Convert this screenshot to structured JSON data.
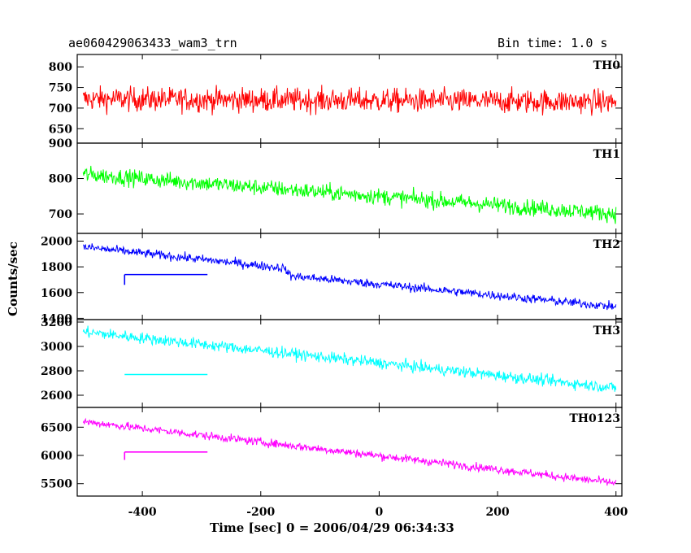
{
  "header": {
    "left_title": "ae060429063433_wam3_trn",
    "right_title": "Bin time: 1.0 s"
  },
  "chart_data": {
    "type": "line",
    "title": "ae060429063433_wam3_trn",
    "subtitle": "Bin time: 1.0 s",
    "xlabel": "Time [sec] 0 = 2006/04/29 06:34:33",
    "ylabel": "Counts/sec",
    "xlim": [
      -510,
      410
    ],
    "x_ticks": [
      -400,
      -200,
      0,
      200,
      400
    ],
    "x_range_data": [
      -500,
      400
    ],
    "panels": [
      {
        "name": "TH0",
        "color": "#ff0000",
        "ylim": [
          615,
          830
        ],
        "y_ticks": [
          650,
          700,
          750,
          800
        ],
        "trend": [
          {
            "x": -500,
            "y": 722
          },
          {
            "x": 400,
            "y": 715
          }
        ],
        "noise_amplitude": 38,
        "gap_segment": null
      },
      {
        "name": "TH1",
        "color": "#00ff00",
        "ylim": [
          645,
          900
        ],
        "y_ticks": [
          700,
          800,
          900
        ],
        "trend": [
          {
            "x": -500,
            "y": 812
          },
          {
            "x": 400,
            "y": 700
          }
        ],
        "noise_amplitude": 30,
        "gap_segment": null
      },
      {
        "name": "TH2",
        "color": "#0000ff",
        "ylim": [
          1390,
          2060
        ],
        "y_ticks": [
          1400,
          1600,
          1800,
          2000
        ],
        "trend": [
          {
            "x": -500,
            "y": 1955
          },
          {
            "x": -160,
            "y": 1790
          },
          {
            "x": -150,
            "y": 1730
          },
          {
            "x": 400,
            "y": 1490
          }
        ],
        "noise_amplitude": 45,
        "gap_segment": {
          "x_start": -430,
          "x_end": -290,
          "y": 1740,
          "spike_y": 1660
        }
      },
      {
        "name": "TH3",
        "color": "#00ffff",
        "ylim": [
          2500,
          3220
        ],
        "y_ticks": [
          2600,
          2800,
          3000,
          3200
        ],
        "trend": [
          {
            "x": -500,
            "y": 3120
          },
          {
            "x": 400,
            "y": 2660
          }
        ],
        "noise_amplitude": 60,
        "gap_segment": {
          "x_start": -430,
          "x_end": -290,
          "y": 2770,
          "spike_y": null
        }
      },
      {
        "name": "TH0123",
        "color": "#ff00ff",
        "ylim": [
          5280,
          6850
        ],
        "y_ticks": [
          5500,
          6000,
          6500
        ],
        "trend": [
          {
            "x": -500,
            "y": 6600
          },
          {
            "x": 400,
            "y": 5510
          }
        ],
        "noise_amplitude": 95,
        "gap_segment": {
          "x_start": -430,
          "x_end": -290,
          "y": 6060,
          "spike_y": 5920
        }
      }
    ],
    "grid": false,
    "legend": "none"
  }
}
